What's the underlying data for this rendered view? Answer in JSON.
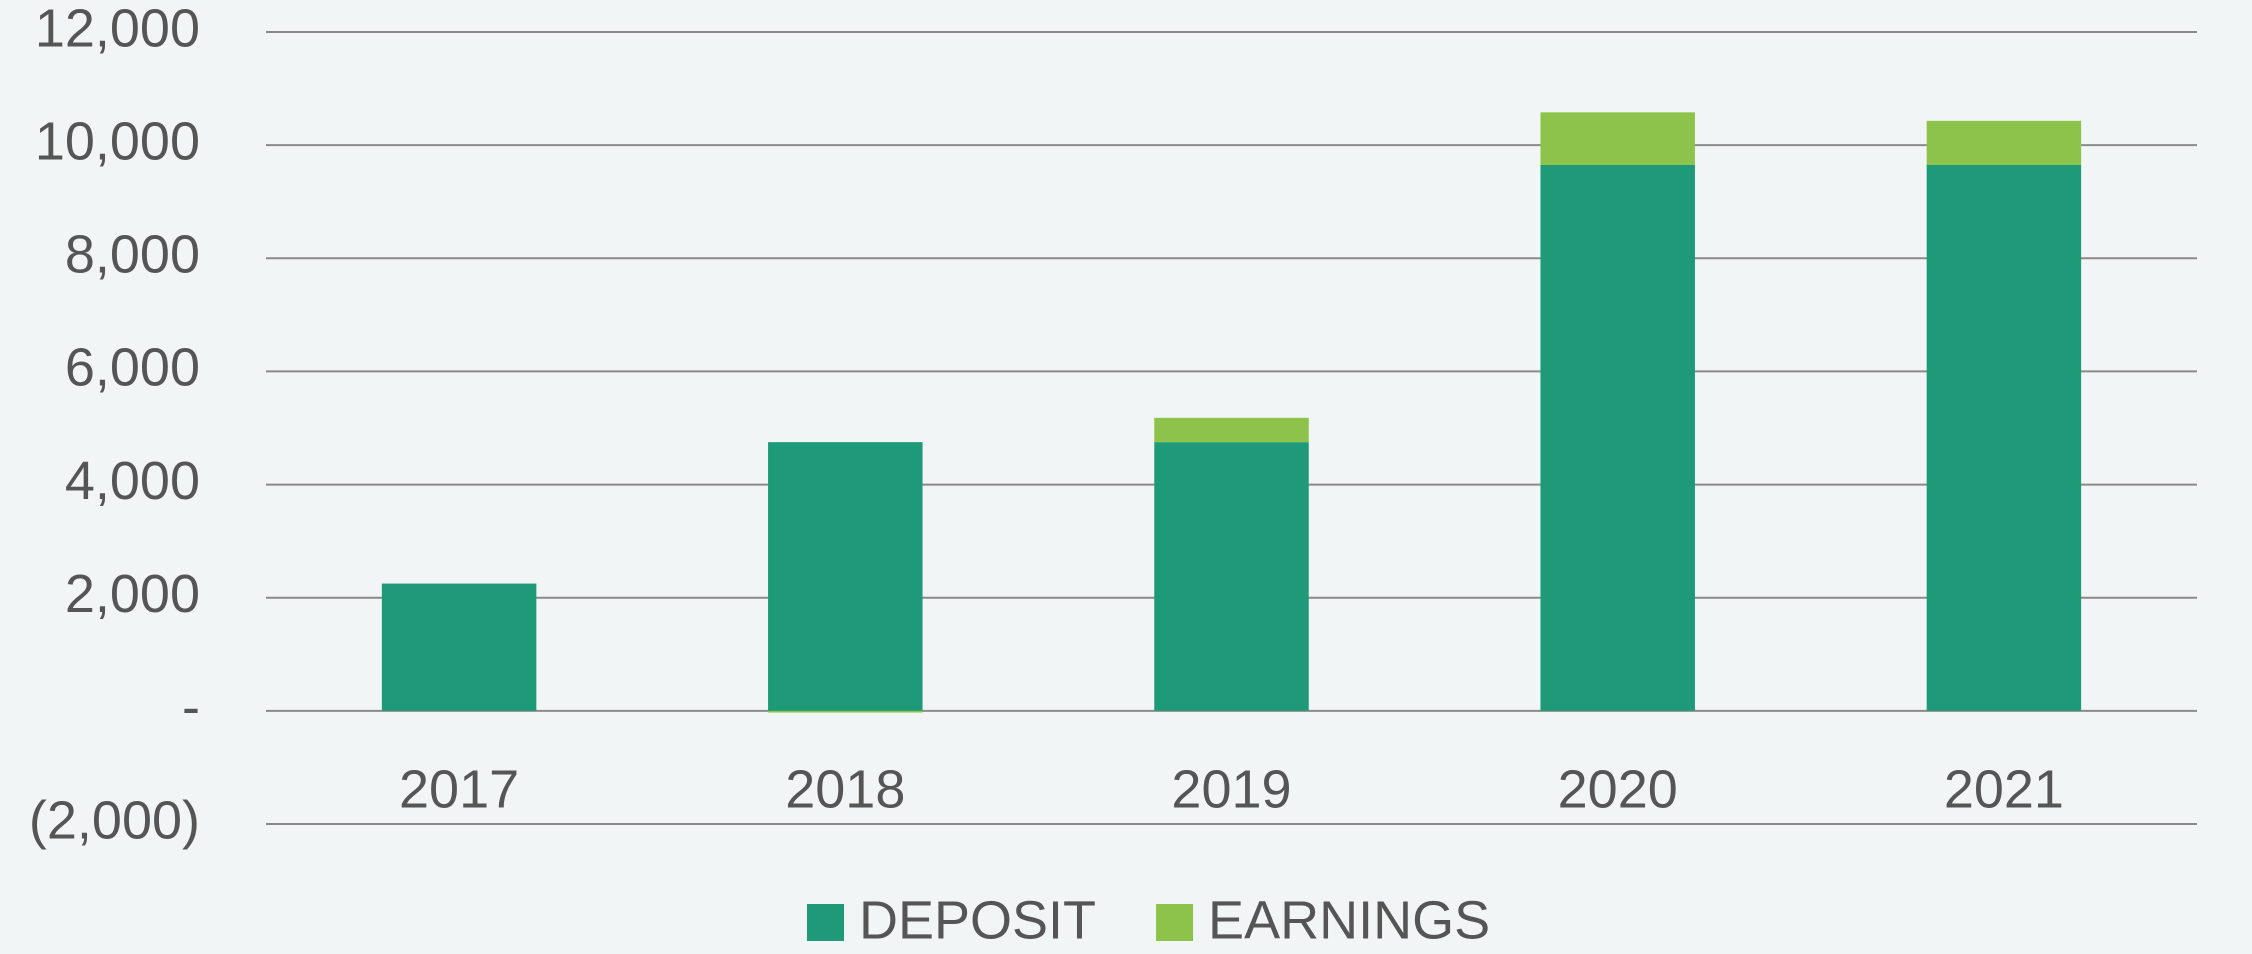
{
  "chart_data": {
    "type": "stacked_bar",
    "categories": [
      "2017",
      "2018",
      "2019",
      "2020",
      "2021"
    ],
    "series": [
      {
        "name": "DEPOSIT",
        "color": "#1e9a78",
        "values": [
          2250,
          4750,
          4750,
          9650,
          9650
        ]
      },
      {
        "name": "EARNINGS",
        "color": "#8dc34a",
        "values": [
          0,
          -30,
          430,
          930,
          780
        ]
      }
    ],
    "ylim": [
      -2000,
      12000
    ],
    "yticks": [
      {
        "value": -2000,
        "label": "(2,000)"
      },
      {
        "value": 0,
        "label": "-"
      },
      {
        "value": 2000,
        "label": "2,000"
      },
      {
        "value": 4000,
        "label": "4,000"
      },
      {
        "value": 6000,
        "label": "6,000"
      },
      {
        "value": 8000,
        "label": "8,000"
      },
      {
        "value": 10000,
        "label": "10,000"
      },
      {
        "value": 12000,
        "label": "12,000"
      }
    ],
    "grid": true,
    "legend": "bottom"
  }
}
